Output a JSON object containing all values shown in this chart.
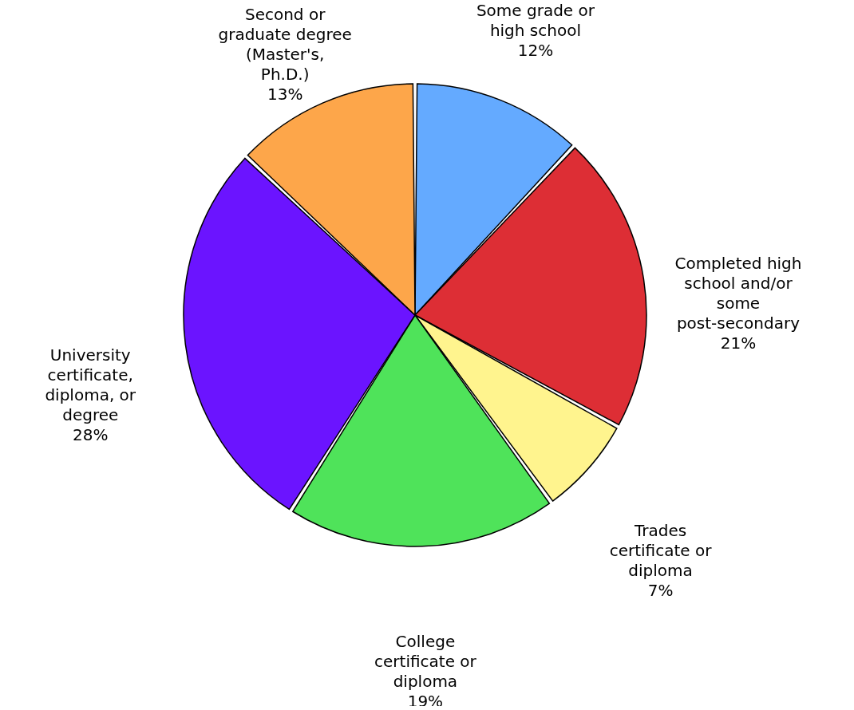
{
  "chart_data": {
    "type": "pie",
    "categories": [
      "Some grade or high school",
      "Completed high school and/or some post-secondary",
      "Trades certificate or diploma",
      "College certificate or diploma",
      "University certificate, diploma, or degree",
      "Second or graduate degree (Master's, Ph.D.)"
    ],
    "values": [
      12,
      21,
      7,
      19,
      28,
      13
    ],
    "value_labels": [
      "12%",
      "21%",
      "7%",
      "19%",
      "28%",
      "13%"
    ],
    "colors": [
      "#64aaff",
      "#dd2e35",
      "#fff48e",
      "#4fe35a",
      "#6b14ff",
      "#fda64a"
    ]
  }
}
